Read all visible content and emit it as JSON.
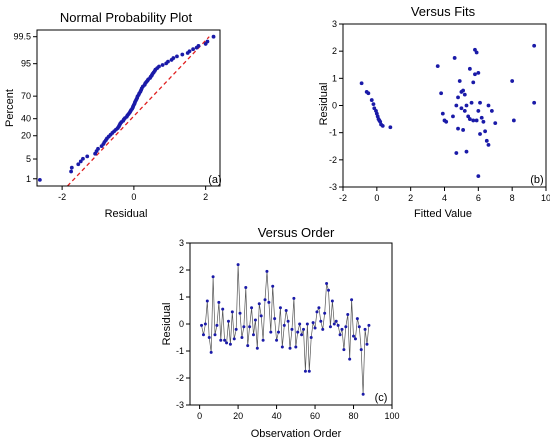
{
  "chart_data": [
    {
      "type": "scatter",
      "title": "Normal Probability Plot",
      "xlabel": "Residual",
      "ylabel": "Percent",
      "panel_label": "(a)",
      "xlim": [
        -2.7,
        2.4
      ],
      "y_scale": "normal-probability",
      "xticks": [
        "-2",
        "0",
        "2"
      ],
      "yticks": [
        "1",
        "5",
        "20",
        "40",
        "70",
        "95",
        "99.5"
      ],
      "fit_line": {
        "x": [
          -1.85,
          2.1
        ],
        "y_percent": [
          0.5,
          99.5
        ],
        "color": "#e02020",
        "style": "dashed"
      },
      "marker_color": "#1a1aa8",
      "series": [
        {
          "x": [
            -2.62,
            -1.75,
            -1.73,
            -1.55,
            -1.48,
            -1.42,
            -1.3,
            -1.08,
            -1.04,
            -1.0,
            -0.9,
            -0.85,
            -0.82,
            -0.78,
            -0.75,
            -0.7,
            -0.65,
            -0.6,
            -0.55,
            -0.5,
            -0.45,
            -0.42,
            -0.4,
            -0.38,
            -0.35,
            -0.3,
            -0.28,
            -0.25,
            -0.2,
            -0.18,
            -0.15,
            -0.12,
            -0.1,
            -0.08,
            -0.05,
            -0.03,
            -0.02,
            0.0,
            0.02,
            0.03,
            0.05,
            0.07,
            0.09,
            0.1,
            0.13,
            0.15,
            0.18,
            0.2,
            0.22,
            0.25,
            0.3,
            0.32,
            0.35,
            0.38,
            0.4,
            0.45,
            0.47,
            0.5,
            0.52,
            0.55,
            0.58,
            0.6,
            0.65,
            0.7,
            0.8,
            0.9,
            0.95,
            1.05,
            1.1,
            1.2,
            1.35,
            1.5,
            1.55,
            1.65,
            1.75,
            1.8,
            2.0,
            2.05,
            2.22
          ],
          "y": [
            0.9,
            1.9,
            2.6,
            3.4,
            4.2,
            5.1,
            6.0,
            7.2,
            8.5,
            9.8,
            11.5,
            13.0,
            14.5,
            16.0,
            17.5,
            19.2,
            21.0,
            22.8,
            24.6,
            26.4,
            28.2,
            30.0,
            31.8,
            33.6,
            35.4,
            37.2,
            39.0,
            40.8,
            42.6,
            44.4,
            46.2,
            48.0,
            49.8,
            51.6,
            53.4,
            55.2,
            57.0,
            58.8,
            60.6,
            62.4,
            64.2,
            66.0,
            67.8,
            69.6,
            71.4,
            73.2,
            75.0,
            76.8,
            78.6,
            80.4,
            82.0,
            83.5,
            84.5,
            85.5,
            86.5,
            87.5,
            88.4,
            89.3,
            90.2,
            91.0,
            91.8,
            92.5,
            93.2,
            93.9,
            94.5,
            95.1,
            95.7,
            96.2,
            96.7,
            97.1,
            97.5,
            97.8,
            98.1,
            98.4,
            98.6,
            98.8,
            99.0,
            99.2,
            99.5
          ]
        }
      ]
    },
    {
      "type": "scatter",
      "title": "Versus Fits",
      "xlabel": "Fitted Value",
      "ylabel": "Residual",
      "panel_label": "(b)",
      "xlim": [
        -2,
        10
      ],
      "ylim": [
        -3,
        3
      ],
      "xticks": [
        "-2",
        "0",
        "2",
        "4",
        "6",
        "8",
        "10"
      ],
      "yticks": [
        "-3",
        "-2",
        "-1",
        "0",
        "1",
        "2",
        "3"
      ],
      "marker_color": "#1a1aa8",
      "series": [
        {
          "x": [
            -0.9,
            -0.6,
            -0.5,
            -0.3,
            -0.2,
            -0.15,
            -0.05,
            0.0,
            0.05,
            0.1,
            0.15,
            0.2,
            0.25,
            0.35,
            0.8,
            3.6,
            3.8,
            3.9,
            4.0,
            4.1,
            4.5,
            4.6,
            4.7,
            4.7,
            4.8,
            4.8,
            4.9,
            5.0,
            5.0,
            5.1,
            5.1,
            5.2,
            5.2,
            5.3,
            5.3,
            5.4,
            5.5,
            5.5,
            5.6,
            5.7,
            5.7,
            5.8,
            5.8,
            5.9,
            5.9,
            6.0,
            6.0,
            6.0,
            6.1,
            6.1,
            6.2,
            6.3,
            6.4,
            6.5,
            6.6,
            6.6,
            6.8,
            7.0,
            8.0,
            8.1,
            9.3,
            9.3
          ],
          "y": [
            0.82,
            0.5,
            0.45,
            0.2,
            0.05,
            -0.1,
            -0.2,
            -0.3,
            -0.4,
            -0.5,
            -0.55,
            -0.6,
            -0.7,
            -0.75,
            -0.8,
            1.45,
            0.45,
            -0.3,
            -0.55,
            -0.6,
            -0.4,
            1.75,
            -1.75,
            0.0,
            -0.85,
            0.3,
            0.9,
            -0.1,
            0.5,
            0.55,
            -0.9,
            0.4,
            -0.2,
            0.0,
            -1.7,
            -0.4,
            1.35,
            -0.5,
            0.1,
            -0.55,
            0.85,
            2.05,
            1.15,
            1.95,
            -0.55,
            -2.6,
            1.2,
            -0.2,
            0.1,
            -1.05,
            -0.45,
            -0.6,
            -0.95,
            -1.3,
            -1.45,
            0.0,
            -0.2,
            -0.65,
            0.9,
            -0.55,
            2.2,
            0.1
          ]
        }
      ]
    },
    {
      "type": "line",
      "title": "Versus Order",
      "xlabel": "Observation Order",
      "ylabel": "Residual",
      "panel_label": "(c)",
      "xlim": [
        -5,
        100
      ],
      "ylim": [
        -3,
        3
      ],
      "xticks": [
        "0",
        "20",
        "40",
        "60",
        "80",
        "100"
      ],
      "yticks": [
        "-3",
        "-2",
        "-1",
        "0",
        "1",
        "2",
        "3"
      ],
      "marker_color": "#1a1aa8",
      "line_color": "#555555",
      "series": [
        {
          "x": [
            1,
            2,
            3,
            4,
            5,
            6,
            7,
            8,
            9,
            10,
            11,
            12,
            13,
            14,
            15,
            16,
            17,
            18,
            19,
            20,
            21,
            22,
            23,
            24,
            25,
            26,
            27,
            28,
            29,
            30,
            31,
            32,
            33,
            34,
            35,
            36,
            37,
            38,
            39,
            40,
            41,
            42,
            43,
            44,
            45,
            46,
            47,
            48,
            49,
            50,
            51,
            52,
            53,
            54,
            55,
            56,
            57,
            58,
            59,
            60,
            61,
            62,
            63,
            64,
            65,
            66,
            67,
            68,
            69,
            70,
            71,
            72,
            73,
            74,
            75,
            76,
            77,
            78,
            79,
            80,
            81,
            82,
            83,
            84,
            85,
            86,
            87,
            88
          ],
          "y": [
            -0.05,
            -0.4,
            0.0,
            0.85,
            -0.5,
            -1.05,
            1.75,
            -0.4,
            -0.05,
            0.8,
            -0.6,
            0.55,
            -0.6,
            -0.7,
            0.1,
            -0.75,
            0.45,
            -0.55,
            -0.2,
            2.2,
            0.4,
            -0.5,
            -0.1,
            1.35,
            -0.8,
            -0.1,
            0.6,
            -0.4,
            0.15,
            -0.9,
            0.75,
            0.3,
            -0.6,
            0.9,
            1.95,
            0.8,
            -0.3,
            1.4,
            0.2,
            -0.6,
            -0.3,
            0.6,
            -0.85,
            -0.05,
            0.5,
            0.1,
            -0.9,
            -0.2,
            0.95,
            -0.85,
            -0.3,
            0.0,
            -0.4,
            -0.2,
            -1.75,
            0.0,
            -1.75,
            -0.5,
            0.05,
            -0.15,
            0.45,
            0.6,
            0.1,
            -0.2,
            0.4,
            1.5,
            1.25,
            -0.1,
            0.85,
            0.0,
            0.1,
            -0.05,
            -0.4,
            -0.2,
            -0.95,
            -0.1,
            0.35,
            -1.3,
            0.9,
            -0.45,
            -0.55,
            0.2,
            -0.1,
            -0.95,
            -2.6,
            -0.2,
            -0.75,
            -0.05
          ]
        }
      ]
    }
  ]
}
